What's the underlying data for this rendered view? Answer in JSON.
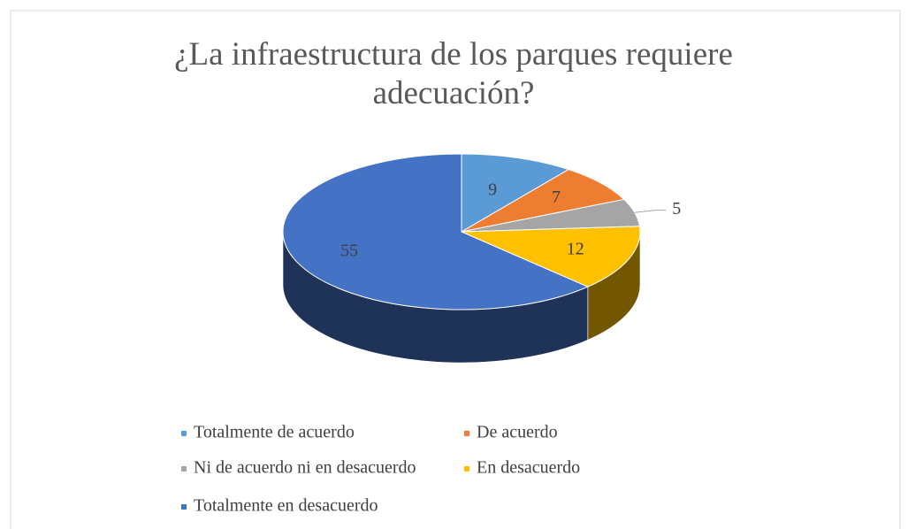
{
  "chart_data": {
    "type": "pie",
    "title": "¿La infraestructura de los parques requiere adecuación?",
    "categories": [
      "Totalmente de acuerdo",
      "De acuerdo",
      "Ni de acuerdo ni en desacuerdo",
      "En desacuerdo",
      "Totalmente en desacuerdo"
    ],
    "values": [
      9,
      7,
      5,
      12,
      55
    ],
    "colors": [
      "#5b9bd5",
      "#ed7d31",
      "#a5a5a5",
      "#ffc000",
      "#4472c4"
    ],
    "legend": "bottom"
  }
}
